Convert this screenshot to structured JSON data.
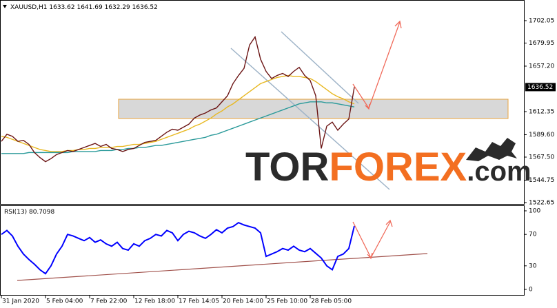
{
  "watermark": [
    "TOR",
    "FOREX",
    ".com"
  ],
  "chart_data": [
    {
      "type": "line",
      "title": "XAUUSD,H1",
      "ohlc": [
        1633.62,
        1641.69,
        1632.29,
        1636.52
      ],
      "xlim": [
        0,
        64
      ],
      "ylim": [
        1521.3,
        1722.4
      ],
      "yticks": [
        1522.65,
        1544.75,
        {
          "value": 1567.5,
          "label": "1567.50"
        },
        {
          "value": 1589.6,
          "label": "1589.60"
        },
        1612.35,
        {
          "value": 1657.2,
          "label": "1657.20"
        },
        1679.95,
        1702.05
      ],
      "xticks": [
        {
          "value": 0,
          "label": "31 Jan 2020"
        },
        {
          "value": 8,
          "label": "5 Feb 04:00"
        },
        {
          "value": 16,
          "label": "7 Feb 22:00"
        },
        {
          "value": 24,
          "label": "12 Feb 18:00"
        },
        {
          "value": 32,
          "label": "17 Feb 14:05"
        },
        {
          "value": 40,
          "label": "20 Feb 14:00"
        },
        {
          "value": 48,
          "label": "25 Feb 10:00"
        },
        {
          "value": 56,
          "label": "28 Feb 05:00"
        }
      ],
      "series": [
        {
          "color": "#e8b820",
          "values": [
            1588,
            1587,
            1585,
            1583,
            1581,
            1579,
            1577,
            1575,
            1574,
            1573,
            1573,
            1573,
            1574,
            1574,
            1575,
            1575,
            1576,
            1576,
            1577,
            1577,
            1577,
            1578,
            1578,
            1579,
            1580,
            1580,
            1581,
            1582,
            1583,
            1585,
            1587,
            1589,
            1591,
            1593,
            1595,
            1598,
            1600,
            1603,
            1606,
            1610,
            1613,
            1617,
            1620,
            1624,
            1628,
            1632,
            1636,
            1640,
            1642,
            1644,
            1646,
            1647,
            1648,
            1647,
            1647,
            1646,
            1645,
            1642,
            1638,
            1634,
            1630,
            1627,
            1625,
            1622,
            1620
          ]
        },
        {
          "color": "#2a9a9a",
          "values": [
            1571,
            1571,
            1571,
            1571,
            1571,
            1572,
            1572,
            1572,
            1572,
            1572,
            1572,
            1572,
            1572,
            1573,
            1573,
            1573,
            1573,
            1573,
            1574,
            1574,
            1574,
            1575,
            1575,
            1576,
            1576,
            1577,
            1577,
            1578,
            1579,
            1579,
            1580,
            1581,
            1582,
            1583,
            1584,
            1585,
            1586,
            1587,
            1589,
            1590,
            1592,
            1594,
            1596,
            1598,
            1600,
            1602,
            1604,
            1606,
            1608,
            1610,
            1612,
            1614,
            1616,
            1618,
            1620,
            1621,
            1622,
            1622,
            1622,
            1621,
            1621,
            1620,
            1619,
            1618,
            1617
          ]
        },
        {
          "color": "#6b1414",
          "values": [
            1583,
            1590,
            1588,
            1583,
            1584,
            1580,
            1572,
            1567,
            1563,
            1566,
            1570,
            1572,
            1574,
            1573,
            1575,
            1577,
            1579,
            1581,
            1578,
            1580,
            1576,
            1575,
            1573,
            1575,
            1576,
            1579,
            1582,
            1583,
            1584,
            1588,
            1592,
            1595,
            1594,
            1597,
            1600,
            1606,
            1609,
            1611,
            1614,
            1616,
            1622,
            1628,
            1640,
            1648,
            1655,
            1678,
            1686,
            1664,
            1652,
            1645,
            1648,
            1650,
            1647,
            1652,
            1656,
            1648,
            1643,
            1628,
            1576,
            1598,
            1602,
            1594,
            1600,
            1605,
            1636.52
          ]
        }
      ]
    },
    {
      "type": "line",
      "title": "RSI(13)",
      "xlim": [
        0,
        64
      ],
      "ylim": [
        -7,
        107
      ],
      "yticks": [
        0,
        30,
        70,
        100
      ],
      "series": [
        {
          "color": "#0000ff",
          "values": [
            70,
            75,
            68,
            55,
            45,
            38,
            32,
            25,
            20,
            30,
            45,
            55,
            70,
            68,
            65,
            62,
            66,
            60,
            63,
            58,
            55,
            60,
            52,
            50,
            58,
            55,
            62,
            65,
            70,
            68,
            75,
            72,
            62,
            70,
            74,
            72,
            68,
            65,
            70,
            76,
            72,
            78,
            80,
            85,
            82,
            80,
            78,
            72,
            42,
            45,
            48,
            52,
            50,
            55,
            50,
            48,
            52,
            46,
            40,
            30,
            25,
            42,
            45,
            52,
            80.7098
          ]
        }
      ]
    }
  ]
}
